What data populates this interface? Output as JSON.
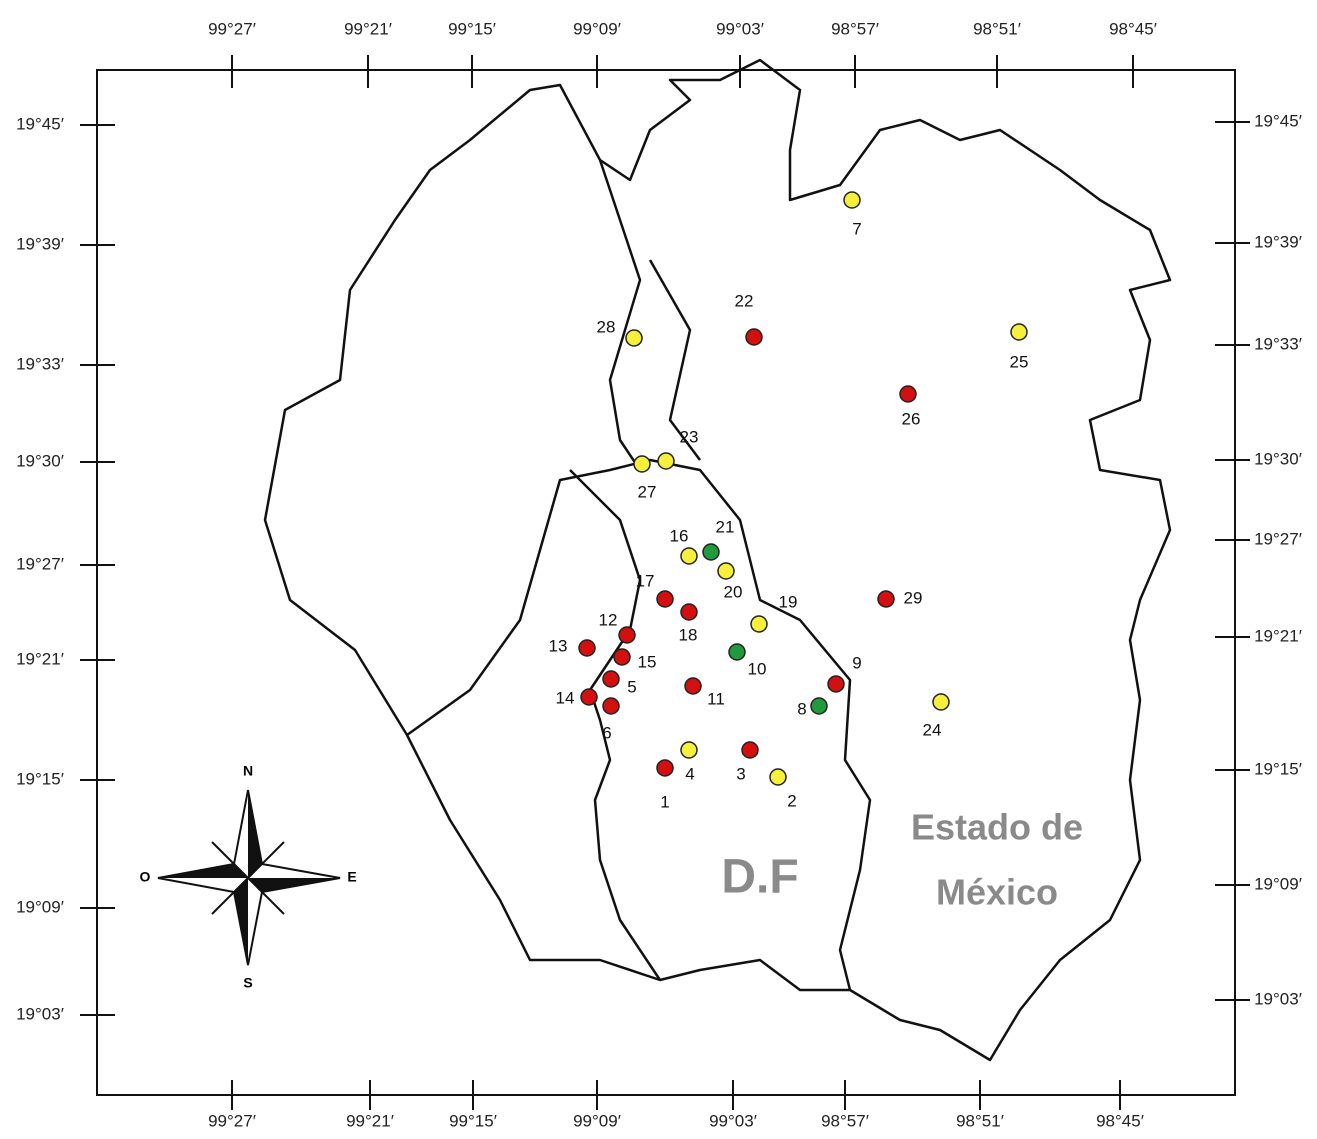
{
  "axes": {
    "top": [
      "99°27′",
      "99°21′",
      "99°15′",
      "99°09′",
      "99°03′",
      "98°57′",
      "98°51′",
      "98°45′"
    ],
    "bottom": [
      "99°27′",
      "99°21′",
      "99°15′",
      "99°09′",
      "99°03′",
      "98°57′",
      "98°51′",
      "98°45′"
    ],
    "left": [
      "19°45′",
      "19°39′",
      "19°33′",
      "19°30′",
      "19°27′",
      "19°21′",
      "19°15′",
      "19°09′",
      "19°03′"
    ],
    "right": [
      "19°45′",
      "19°39′",
      "19°33′",
      "19°30′",
      "19°27′",
      "19°21′",
      "19°15′",
      "19°09′",
      "19°03′"
    ]
  },
  "stations": [
    {
      "label": "1",
      "color": "#d40f0f"
    },
    {
      "label": "2",
      "color": "#f6ef3c"
    },
    {
      "label": "3",
      "color": "#d40f0f"
    },
    {
      "label": "4",
      "color": "#f6ef3c"
    },
    {
      "label": "5",
      "color": "#d40f0f"
    },
    {
      "label": "6",
      "color": "#d40f0f"
    },
    {
      "label": "7",
      "color": "#f6ef3c"
    },
    {
      "label": "8",
      "color": "#1f9a3c"
    },
    {
      "label": "9",
      "color": "#d40f0f"
    },
    {
      "label": "10",
      "color": "#1f9a3c"
    },
    {
      "label": "11",
      "color": "#d40f0f"
    },
    {
      "label": "12",
      "color": "#d40f0f"
    },
    {
      "label": "13",
      "color": "#d40f0f"
    },
    {
      "label": "14",
      "color": "#d40f0f"
    },
    {
      "label": "15",
      "color": "#d40f0f"
    },
    {
      "label": "16",
      "color": "#f6ef3c"
    },
    {
      "label": "17",
      "color": "#d40f0f"
    },
    {
      "label": "18",
      "color": "#d40f0f"
    },
    {
      "label": "19",
      "color": "#f6ef3c"
    },
    {
      "label": "20",
      "color": "#f6ef3c"
    },
    {
      "label": "21",
      "color": "#1f9a3c"
    },
    {
      "label": "22",
      "color": "#d40f0f"
    },
    {
      "label": "23",
      "color": "#f6ef3c"
    },
    {
      "label": "24",
      "color": "#f6ef3c"
    },
    {
      "label": "25",
      "color": "#f6ef3c"
    },
    {
      "label": "26",
      "color": "#d40f0f"
    },
    {
      "label": "27",
      "color": "#f6ef3c"
    },
    {
      "label": "28",
      "color": "#f6ef3c"
    },
    {
      "label": "29",
      "color": "#d40f0f"
    }
  ],
  "regions": {
    "df": "D.F",
    "estado_line1": "Estado de",
    "estado_line2": "México"
  },
  "compass": {
    "north": "N",
    "south": "S",
    "west": "O",
    "east": "E"
  }
}
